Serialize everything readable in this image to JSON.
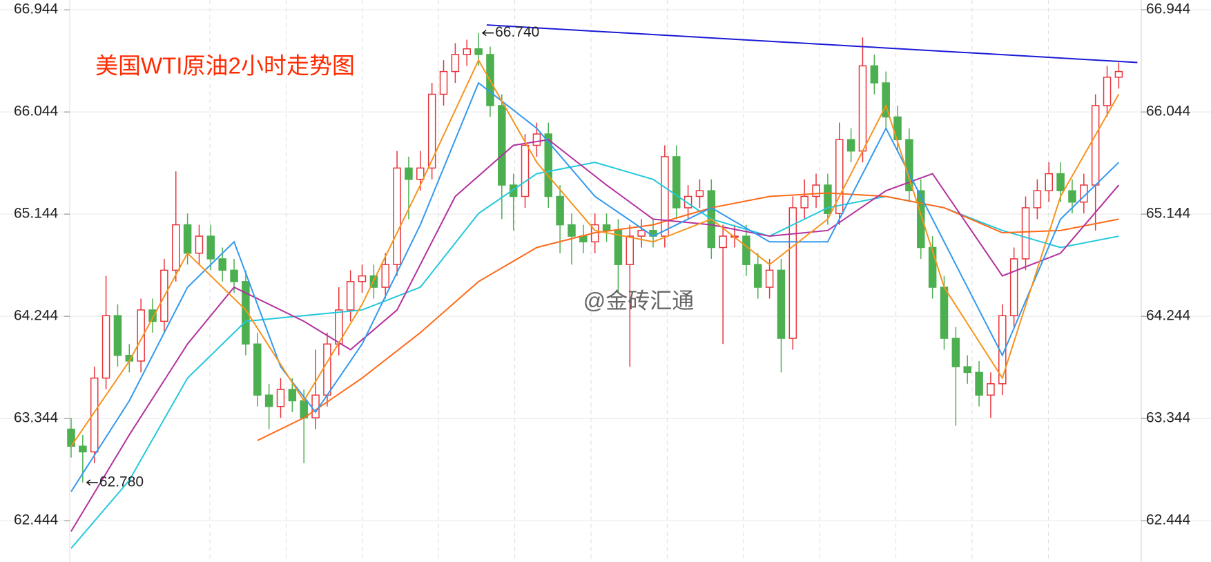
{
  "chart_data": {
    "type": "candlestick",
    "title": "美国WTI原油2小时走势图",
    "watermark": "@金砖汇通",
    "up_color": "#e8333a",
    "down_color": "#4caf50",
    "ylim": [
      62.08,
      67.03
    ],
    "yticks": [
      62.444,
      63.344,
      64.244,
      65.144,
      66.044,
      66.944
    ],
    "grid": true,
    "open": [
      63.25,
      63.1,
      63.05,
      63.7,
      64.25,
      63.9,
      63.85,
      64.3,
      64.2,
      64.65,
      65.05,
      64.8,
      64.95,
      64.75,
      64.65,
      64.55,
      64.0,
      63.55,
      63.45,
      63.6,
      63.5,
      63.35,
      63.55,
      64.0,
      64.3,
      64.55,
      64.6,
      64.5,
      64.7,
      65.55,
      65.45,
      65.55,
      66.2,
      66.4,
      66.55,
      66.6,
      66.55,
      66.1,
      65.4,
      65.3,
      65.75,
      65.85,
      65.3,
      65.05,
      64.95,
      64.9,
      65.05,
      65.0,
      64.7,
      64.95,
      65.0,
      64.95,
      65.65,
      65.2,
      65.3,
      65.35,
      64.85,
      64.95,
      64.95,
      64.7,
      64.5,
      64.65,
      64.05,
      65.2,
      65.3,
      65.4,
      65.15,
      65.8,
      65.7,
      66.45,
      66.3,
      66.0,
      65.8,
      65.35,
      64.85,
      64.5,
      64.05,
      63.8,
      63.75,
      63.55,
      63.65,
      64.25,
      64.75,
      65.2,
      65.35,
      65.5,
      65.35,
      65.25,
      65.4,
      66.1,
      66.35
    ],
    "high": [
      63.35,
      63.2,
      63.8,
      64.6,
      64.35,
      64.0,
      64.4,
      64.4,
      64.75,
      65.52,
      65.15,
      65.05,
      65.05,
      64.85,
      64.75,
      64.65,
      64.1,
      63.65,
      63.7,
      63.7,
      63.6,
      63.95,
      64.1,
      64.5,
      64.65,
      64.7,
      64.7,
      64.8,
      65.7,
      65.65,
      65.7,
      66.3,
      66.5,
      66.65,
      66.68,
      66.74,
      66.62,
      66.2,
      65.5,
      65.85,
      65.95,
      65.95,
      65.4,
      65.15,
      65.05,
      65.15,
      65.15,
      65.1,
      65.05,
      65.1,
      65.1,
      65.75,
      65.75,
      65.4,
      65.45,
      65.45,
      65.05,
      65.05,
      65.05,
      64.8,
      64.75,
      64.75,
      65.3,
      65.45,
      65.5,
      65.5,
      65.95,
      65.9,
      66.7,
      66.55,
      66.4,
      66.1,
      65.9,
      65.45,
      64.95,
      64.6,
      64.15,
      63.9,
      63.85,
      63.75,
      64.35,
      64.85,
      65.3,
      65.45,
      65.6,
      65.6,
      65.45,
      65.5,
      66.2,
      66.45,
      66.48
    ],
    "low": [
      63.0,
      62.78,
      62.95,
      63.6,
      63.8,
      63.75,
      63.75,
      64.1,
      64.1,
      64.55,
      64.7,
      64.7,
      64.65,
      64.55,
      64.45,
      63.9,
      63.45,
      63.25,
      63.35,
      63.4,
      62.95,
      63.25,
      63.45,
      63.9,
      64.2,
      64.45,
      64.4,
      64.4,
      64.6,
      65.1,
      65.35,
      65.45,
      66.1,
      66.3,
      66.45,
      66.45,
      66.0,
      65.1,
      65.0,
      65.2,
      65.65,
      65.2,
      64.8,
      64.7,
      64.8,
      64.8,
      64.9,
      64.45,
      63.8,
      64.85,
      64.85,
      64.85,
      65.1,
      65.1,
      65.2,
      64.75,
      64.0,
      64.85,
      64.6,
      64.4,
      64.4,
      63.75,
      63.95,
      65.1,
      65.2,
      65.05,
      65.05,
      65.6,
      65.6,
      66.2,
      65.9,
      65.7,
      65.25,
      64.75,
      64.4,
      63.95,
      63.28,
      63.65,
      63.45,
      63.35,
      63.55,
      64.15,
      64.65,
      65.1,
      65.25,
      65.25,
      65.15,
      65.15,
      65.0,
      66.0,
      66.25
    ],
    "close": [
      63.1,
      63.05,
      63.7,
      64.25,
      63.9,
      63.85,
      64.3,
      64.2,
      64.65,
      65.05,
      64.8,
      64.95,
      64.75,
      64.65,
      64.55,
      64.0,
      63.55,
      63.45,
      63.6,
      63.5,
      63.35,
      63.55,
      64.0,
      64.3,
      64.55,
      64.6,
      64.5,
      64.7,
      65.55,
      65.45,
      65.55,
      66.2,
      66.4,
      66.55,
      66.6,
      66.55,
      66.1,
      65.4,
      65.3,
      65.75,
      65.85,
      65.3,
      65.05,
      64.95,
      64.9,
      65.05,
      65.0,
      64.7,
      64.95,
      65.0,
      64.95,
      65.65,
      65.2,
      65.3,
      65.35,
      64.85,
      64.95,
      64.95,
      64.7,
      64.5,
      64.65,
      64.05,
      65.2,
      65.3,
      65.4,
      65.15,
      65.8,
      65.7,
      66.45,
      66.3,
      66.0,
      65.8,
      65.35,
      64.85,
      64.5,
      64.05,
      63.8,
      63.75,
      63.55,
      63.65,
      64.25,
      64.75,
      65.2,
      65.35,
      65.5,
      65.35,
      65.25,
      65.4,
      66.1,
      66.35,
      66.4
    ],
    "lines": [
      {
        "color": "#22c8dc",
        "x": [
          0,
          5,
          10,
          15,
          20,
          25,
          30,
          35,
          40,
          45,
          50,
          55,
          60,
          65,
          70,
          75,
          80,
          85,
          90
        ],
        "values": [
          62.2,
          62.8,
          63.7,
          64.2,
          64.25,
          64.3,
          64.5,
          65.15,
          65.5,
          65.6,
          65.45,
          65.1,
          64.95,
          65.2,
          65.3,
          65.2,
          65.0,
          64.85,
          64.95
        ]
      },
      {
        "color": "#ff6a1a",
        "x": [
          16,
          20,
          25,
          30,
          35,
          40,
          45,
          50,
          55,
          60,
          65,
          70,
          75,
          80,
          85,
          90
        ],
        "values": [
          63.15,
          63.35,
          63.7,
          64.1,
          64.55,
          64.85,
          64.98,
          65.05,
          65.2,
          65.3,
          65.33,
          65.3,
          65.2,
          64.98,
          65.0,
          65.1
        ]
      },
      {
        "color": "#b3309e",
        "x": [
          0,
          5,
          10,
          14,
          20,
          24,
          28,
          33,
          38,
          41,
          46,
          50,
          55,
          60,
          65,
          70,
          74,
          80,
          85,
          90
        ],
        "values": [
          62.35,
          63.2,
          64.0,
          64.5,
          64.2,
          63.95,
          64.3,
          65.3,
          65.75,
          65.8,
          65.4,
          65.1,
          65.05,
          64.95,
          65.0,
          65.35,
          65.5,
          64.6,
          64.8,
          65.4
        ]
      },
      {
        "color": "#3399ee",
        "x": [
          0,
          5,
          10,
          14,
          18,
          21,
          25,
          30,
          35,
          40,
          45,
          50,
          55,
          60,
          65,
          70,
          75,
          80,
          85,
          90
        ],
        "values": [
          62.7,
          63.5,
          64.5,
          64.9,
          63.8,
          63.4,
          64.0,
          65.05,
          66.3,
          65.9,
          65.3,
          64.95,
          65.2,
          64.9,
          64.9,
          65.9,
          64.9,
          63.9,
          65.1,
          65.6
        ]
      },
      {
        "color": "#f7931e",
        "x": [
          0,
          5,
          10,
          15,
          20,
          25,
          30,
          35,
          40,
          45,
          50,
          55,
          60,
          65,
          70,
          75,
          80,
          85,
          90
        ],
        "values": [
          63.1,
          63.85,
          64.8,
          64.3,
          63.5,
          64.35,
          65.4,
          66.5,
          65.6,
          65.0,
          64.9,
          65.1,
          64.7,
          65.1,
          66.1,
          64.5,
          63.7,
          65.3,
          66.2
        ]
      }
    ],
    "trendline": {
      "color": "#1a1ad6",
      "x": [
        35.7,
        91.6
      ],
      "values": [
        66.81,
        66.48
      ]
    },
    "annotations": [
      {
        "x": 35,
        "value": 66.74,
        "label": "66.740"
      },
      {
        "x": 1,
        "value": 62.78,
        "label": "62.780"
      }
    ]
  }
}
